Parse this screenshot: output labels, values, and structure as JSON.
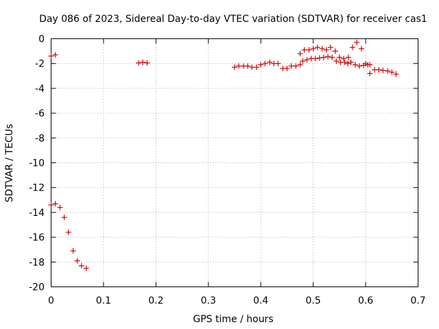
{
  "chart_data": {
    "type": "scatter",
    "title": "Day 086 of 2023, Sidereal Day-to-day VTEC variation (SDTVAR) for receiver cas1",
    "xlabel": "GPS time / hours",
    "ylabel": "SDTVAR / TECUs",
    "xlim": [
      0,
      0.7
    ],
    "ylim": [
      -20,
      0
    ],
    "xticks": [
      0,
      0.1,
      0.2,
      0.3,
      0.4,
      0.5,
      0.6,
      0.7
    ],
    "xtick_labels": [
      "0",
      "0.1",
      "0.2",
      "0.3",
      "0.4",
      "0.5",
      "0.6",
      "0.7"
    ],
    "yticks": [
      0,
      -2,
      -4,
      -6,
      -8,
      -10,
      -12,
      -14,
      -16,
      -18,
      -20
    ],
    "ytick_labels": [
      "0",
      "-2",
      "-4",
      "-6",
      "-8",
      "-10",
      "-12",
      "-14",
      "-16",
      "-18",
      "-20"
    ],
    "grid": true,
    "marker": "+",
    "series": [
      {
        "name": "SDTVAR",
        "color": "#cc0000",
        "x": [
          0.0,
          0.008,
          0.0,
          0.008,
          0.017,
          0.025,
          0.033,
          0.042,
          0.05,
          0.058,
          0.067,
          0.167,
          0.175,
          0.183,
          0.35,
          0.358,
          0.367,
          0.375,
          0.383,
          0.392,
          0.4,
          0.408,
          0.417,
          0.425,
          0.433,
          0.442,
          0.45,
          0.458,
          0.467,
          0.475,
          0.483,
          0.492,
          0.5,
          0.508,
          0.517,
          0.525,
          0.533,
          0.542,
          0.55,
          0.558,
          0.567,
          0.575,
          0.583,
          0.592,
          0.6,
          0.608,
          0.475,
          0.48,
          0.488,
          0.496,
          0.504,
          0.512,
          0.52,
          0.528,
          0.536,
          0.544,
          0.552,
          0.56,
          0.566,
          0.572,
          0.58,
          0.588,
          0.596,
          0.604,
          0.608,
          0.617,
          0.625,
          0.633,
          0.642,
          0.65,
          0.658
        ],
        "y": [
          -1.4,
          -1.3,
          -13.4,
          -13.3,
          -13.6,
          -14.4,
          -15.6,
          -17.1,
          -17.9,
          -18.3,
          -18.5,
          -1.95,
          -1.9,
          -1.95,
          -2.3,
          -2.2,
          -2.2,
          -2.2,
          -2.3,
          -2.3,
          -2.1,
          -2.0,
          -1.9,
          -2.0,
          -2.0,
          -2.4,
          -2.4,
          -2.2,
          -2.2,
          -1.2,
          -0.9,
          -0.9,
          -0.8,
          -0.7,
          -0.8,
          -0.9,
          -0.7,
          -1.0,
          -1.5,
          -1.6,
          -1.5,
          -0.7,
          -0.3,
          -0.8,
          -2.0,
          -2.1,
          -2.1,
          -1.8,
          -1.7,
          -1.6,
          -1.6,
          -1.55,
          -1.5,
          -1.45,
          -1.5,
          -1.8,
          -1.9,
          -1.9,
          -2.0,
          -1.9,
          -2.1,
          -2.2,
          -2.15,
          -2.1,
          -2.8,
          -2.5,
          -2.5,
          -2.55,
          -2.6,
          -2.7,
          -2.85
        ]
      }
    ]
  }
}
